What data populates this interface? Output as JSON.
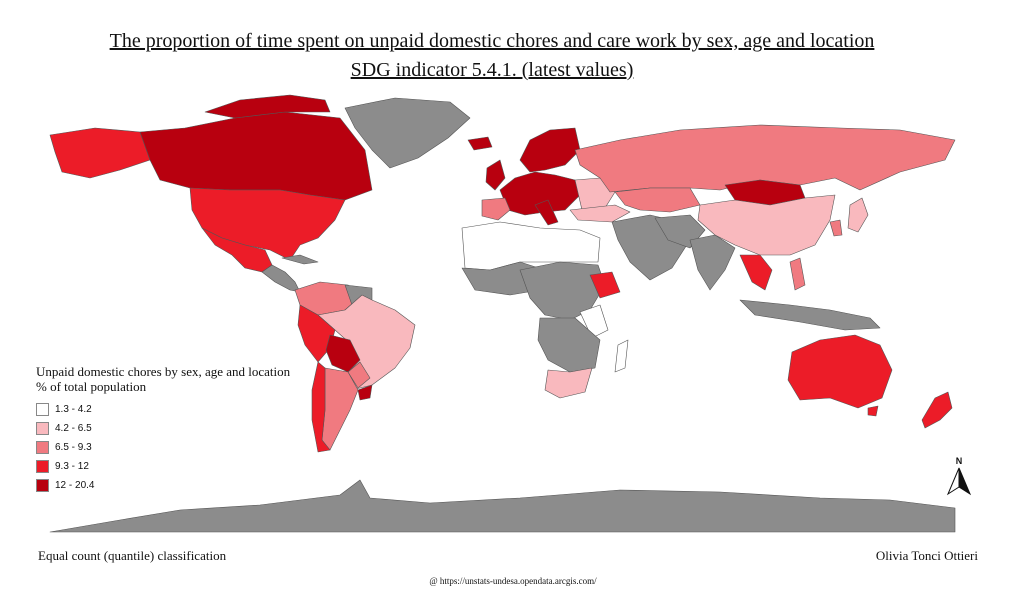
{
  "title_line1": "The proportion of time spent on unpaid domestic chores and care work by sex, age and location",
  "title_line2": "SDG indicator 5.4.1. (latest values)",
  "legend": {
    "title_line1": "Unpaid domestic chores by sex, age and location",
    "title_line2": "% of total population",
    "classes": [
      {
        "label": "1.3 - 4.2",
        "color": "#ffffff"
      },
      {
        "label": "4.2 - 6.5",
        "color": "#f9b9be"
      },
      {
        "label": "6.5 - 9.3",
        "color": "#f07a80"
      },
      {
        "label": "9.3 - 12",
        "color": "#ec1c28"
      },
      {
        "label": "12 - 20.4",
        "color": "#b8000f"
      }
    ]
  },
  "no_data_color": "#8c8c8c",
  "classification_note": "Equal count (quantile) classification",
  "author": "Olivia Tonci Ottieri",
  "source": "@ https://unstats-undesa.opendata.arcgis.com/",
  "north_label": "N",
  "regions": [
    {
      "name": "Canada",
      "class": 4
    },
    {
      "name": "United States",
      "class": 3
    },
    {
      "name": "Mexico",
      "class": 3
    },
    {
      "name": "Colombia",
      "class": 2
    },
    {
      "name": "Brazil",
      "class": 1
    },
    {
      "name": "Peru",
      "class": 3
    },
    {
      "name": "Bolivia",
      "class": 4
    },
    {
      "name": "Argentina",
      "class": 2
    },
    {
      "name": "Chile",
      "class": 3
    },
    {
      "name": "Greenland",
      "class": 0
    },
    {
      "name": "Russia",
      "class": 2
    },
    {
      "name": "Mongolia",
      "class": 4
    },
    {
      "name": "China",
      "class": 1
    },
    {
      "name": "Kazakhstan",
      "class": 2
    },
    {
      "name": "Western Europe",
      "class": 4
    },
    {
      "name": "Scandinavia",
      "class": 4
    },
    {
      "name": "Australia",
      "class": 3
    },
    {
      "name": "New Zealand",
      "class": 3
    },
    {
      "name": "Ethiopia",
      "class": 3
    },
    {
      "name": "South Africa",
      "class": 1
    },
    {
      "name": "North Africa",
      "class": 0
    },
    {
      "name": "Japan",
      "class": 1
    }
  ]
}
